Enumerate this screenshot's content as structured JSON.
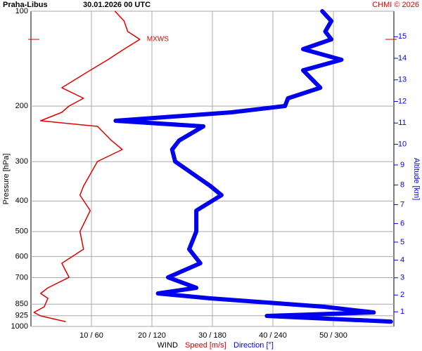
{
  "chart_data": {
    "type": "line",
    "title": "Praha-Libus",
    "subtitle": "30.01.2026 00 UTC",
    "credit": "CHMI © 2026",
    "annotation": "MXWS",
    "ylabel": "Pressure [hPa]",
    "y2label": "Altitude [km]",
    "xlabel": "WIND",
    "log_y": true,
    "grid": true,
    "y": [
      100,
      107.4,
      116,
      122.8,
      131.9,
      142.5,
      153.9,
      174.9,
      188.9,
      199.8,
      209.3,
      222.6,
      231.9,
      257,
      274.7,
      299.7,
      358.5,
      383.2,
      429,
      500,
      568.9,
      630.3,
      698.6,
      754.3,
      786,
      814.6,
      866.4,
      902.6,
      926.1,
      965
    ],
    "series": [
      {
        "name": "Speed [m/s]",
        "color": "#e00000",
        "values": [
          13.9,
          15.4,
          16.0,
          18.0,
          15.4,
          12.7,
          9.8,
          5.1,
          8.7,
          6.3,
          5.1,
          1.6,
          11.0,
          13.3,
          15.1,
          11.0,
          8.7,
          8.1,
          9.8,
          8.1,
          8.7,
          5.1,
          6.3,
          2.8,
          1.6,
          2.8,
          2.2,
          0.5,
          1.6,
          5.7
        ]
      },
      {
        "name": "Direction [°]",
        "color": "#0000ee",
        "axis": "x2",
        "values": [
          289,
          298,
          292,
          298,
          270,
          308,
          270,
          287,
          255,
          252,
          199,
          84,
          171,
          147,
          140,
          143,
          178,
          189,
          164,
          164,
          157,
          168,
          136,
          164,
          126,
          178,
          291,
          340,
          234,
          357
        ]
      }
    ],
    "xlim": [
      0,
      60
    ],
    "x2lim": [
      0,
      360
    ],
    "xticks": [
      {
        "value": 10,
        "label": "10 / 60"
      },
      {
        "value": 20,
        "label": "20 / 120"
      },
      {
        "value": 30,
        "label": "30 / 180"
      },
      {
        "value": 40,
        "label": "40 / 240"
      },
      {
        "value": 50,
        "label": "50 / 300"
      }
    ],
    "ylim": [
      100,
      1000
    ],
    "yticks": [
      100,
      200,
      300,
      400,
      500,
      600,
      700,
      850,
      925,
      1000
    ],
    "y2ticks": [
      1,
      2,
      3,
      4,
      5,
      6,
      7,
      8,
      9,
      10,
      11,
      12,
      13,
      14,
      15
    ]
  }
}
